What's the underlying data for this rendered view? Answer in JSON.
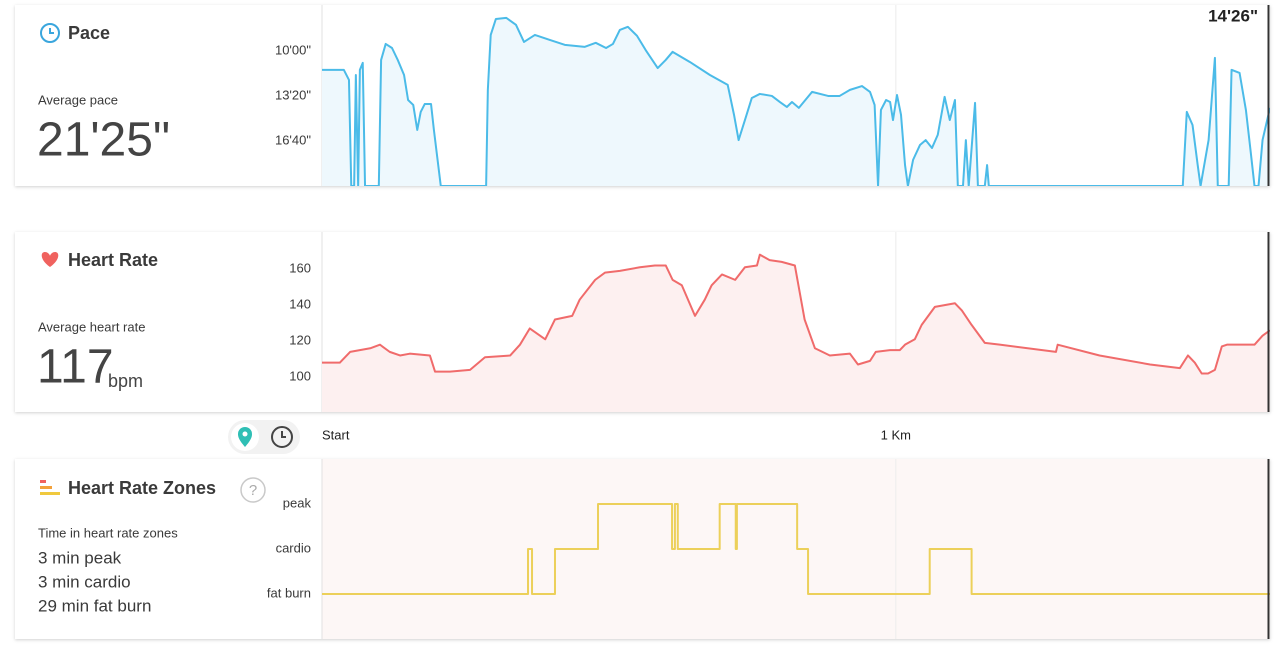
{
  "chart_data": [
    {
      "type": "line",
      "title": "Pace",
      "summary_label": "Average pace",
      "summary_value": "21'25\"",
      "annotation": "14'26\"",
      "color": "#4bbbe8",
      "fill": "#eef8fd",
      "grid": false,
      "xlim": [
        0,
        1.652
      ],
      "x": [
        0,
        0.038,
        0.047,
        0.051,
        0.056,
        0.059,
        0.063,
        0.066,
        0.071,
        0.075,
        0.099,
        0.103,
        0.111,
        0.122,
        0.132,
        0.143,
        0.15,
        0.159,
        0.166,
        0.172,
        0.179,
        0.19,
        0.195,
        0.207,
        0.286,
        0.289,
        0.294,
        0.303,
        0.321,
        0.338,
        0.352,
        0.371,
        0.397,
        0.423,
        0.458,
        0.477,
        0.495,
        0.507,
        0.519,
        0.533,
        0.549,
        0.564,
        0.585,
        0.599,
        0.611,
        0.641,
        0.676,
        0.707,
        0.718,
        0.726,
        0.737,
        0.749,
        0.763,
        0.784,
        0.798,
        0.81,
        0.819,
        0.831,
        0.854,
        0.882,
        0.902,
        0.92,
        0.941,
        0.955,
        0.963,
        0.969,
        0.974,
        0.983,
        0.99,
        0.995,
        1.002,
        1.009,
        1.016,
        1.021,
        1.03,
        1.042,
        1.052,
        1.063,
        1.073,
        1.085,
        1.094,
        1.103,
        1.108,
        1.117,
        1.122,
        1.127,
        1.138,
        1.143,
        1.155,
        1.159,
        1.162,
        1.5,
        1.507,
        1.517,
        1.526,
        1.531,
        1.545,
        1.556,
        1.561,
        1.58,
        1.585,
        1.599,
        1.61,
        1.618,
        1.625,
        1.632,
        1.639,
        1.652
      ],
      "values": [
        684,
        684,
        729,
        1200,
        1200,
        707,
        1200,
        684,
        653,
        1200,
        1200,
        640,
        569,
        587,
        640,
        707,
        818,
        840,
        951,
        871,
        836,
        836,
        951,
        1200,
        1200,
        773,
        529,
        458,
        453,
        484,
        560,
        529,
        551,
        573,
        582,
        564,
        587,
        569,
        507,
        493,
        533,
        596,
        676,
        640,
        604,
        649,
        707,
        751,
        884,
        996,
        907,
        809,
        791,
        800,
        827,
        849,
        827,
        853,
        782,
        800,
        800,
        773,
        756,
        782,
        840,
        1200,
        862,
        818,
        827,
        907,
        796,
        884,
        1107,
        1200,
        1084,
        1018,
        996,
        1031,
        973,
        804,
        907,
        818,
        1200,
        1200,
        996,
        1200,
        831,
        1200,
        1200,
        1107,
        1200,
        1200,
        871,
        929,
        1107,
        1200,
        996,
        631,
        1200,
        1200,
        684,
        698,
        862,
        1040,
        1200,
        1200,
        996,
        853
      ],
      "ylim": [
        1200,
        396
      ],
      "yticks": [
        {
          "value": 600,
          "label": "10'00\""
        },
        {
          "value": 800,
          "label": "13'20\""
        },
        {
          "value": 1000,
          "label": "16'40\""
        }
      ]
    },
    {
      "type": "line",
      "title": "Heart Rate",
      "summary_label": "Average heart rate",
      "summary_value": 117,
      "summary_unit": "bpm",
      "color": "#f06b6b",
      "fill": "#fdf0f0",
      "grid": false,
      "xlim": [
        0,
        1.652
      ],
      "xticks": [
        {
          "value": 0,
          "label": "Start"
        },
        {
          "value": 1,
          "label": "1 Km"
        }
      ],
      "x": [
        0,
        0.031,
        0.049,
        0.084,
        0.101,
        0.118,
        0.136,
        0.153,
        0.188,
        0.197,
        0.223,
        0.258,
        0.284,
        0.328,
        0.345,
        0.362,
        0.389,
        0.406,
        0.436,
        0.449,
        0.476,
        0.493,
        0.519,
        0.554,
        0.58,
        0.599,
        0.611,
        0.627,
        0.65,
        0.667,
        0.679,
        0.697,
        0.72,
        0.737,
        0.758,
        0.763,
        0.78,
        0.801,
        0.824,
        0.841,
        0.859,
        0.885,
        0.92,
        0.934,
        0.955,
        0.965,
        0.99,
        1.007,
        1.016,
        1.033,
        1.045,
        1.068,
        1.085,
        1.103,
        1.115,
        1.132,
        1.155,
        1.181,
        1.279,
        1.282,
        1.355,
        1.443,
        1.495,
        1.509,
        1.521,
        1.533,
        1.544,
        1.556,
        1.568,
        1.577,
        1.625,
        1.639,
        1.652
      ],
      "values": [
        108,
        108,
        114,
        116,
        118,
        114,
        112,
        113,
        112,
        103,
        103,
        104,
        111,
        112,
        118,
        127,
        121,
        132,
        134,
        143,
        154,
        158,
        159,
        161,
        162,
        162,
        154,
        151,
        134,
        143,
        151,
        157,
        154,
        161,
        162,
        168,
        165,
        164,
        162,
        132,
        116,
        112,
        113,
        107,
        109,
        114,
        115,
        115,
        118,
        121,
        129,
        139,
        140,
        141,
        137,
        129,
        119,
        118,
        114,
        118,
        112,
        107,
        105,
        112,
        108,
        102,
        102,
        104,
        117,
        118,
        118,
        123,
        126
      ],
      "ylim": [
        80.6,
        180.6
      ],
      "yticks": [
        100,
        120,
        140,
        160
      ]
    },
    {
      "type": "step",
      "title": "Heart Rate Zones",
      "help": "?",
      "summary_label": "Time in heart rate zones",
      "summary_lines": [
        "3 min peak",
        "3 min cardio",
        "29 min fat burn"
      ],
      "color": "#ecd05a",
      "fill": "#fdf7f6",
      "grid": false,
      "xlim": [
        0,
        1.652
      ],
      "x": [
        0,
        0.359,
        0.366,
        0.406,
        0.481,
        0.61,
        0.615,
        0.62,
        0.693,
        0.721,
        0.723,
        0.828,
        0.847,
        1.059,
        1.132,
        1.652
      ],
      "values": [
        0,
        1,
        0,
        1,
        2,
        1,
        2,
        1,
        2,
        1,
        2,
        1,
        0,
        1,
        0,
        0
      ],
      "ylim": [
        -1,
        3
      ],
      "yticks": [
        {
          "value": 0,
          "label": "fat burn"
        },
        {
          "value": 1,
          "label": "cardio"
        },
        {
          "value": 2,
          "label": "peak"
        }
      ]
    }
  ]
}
